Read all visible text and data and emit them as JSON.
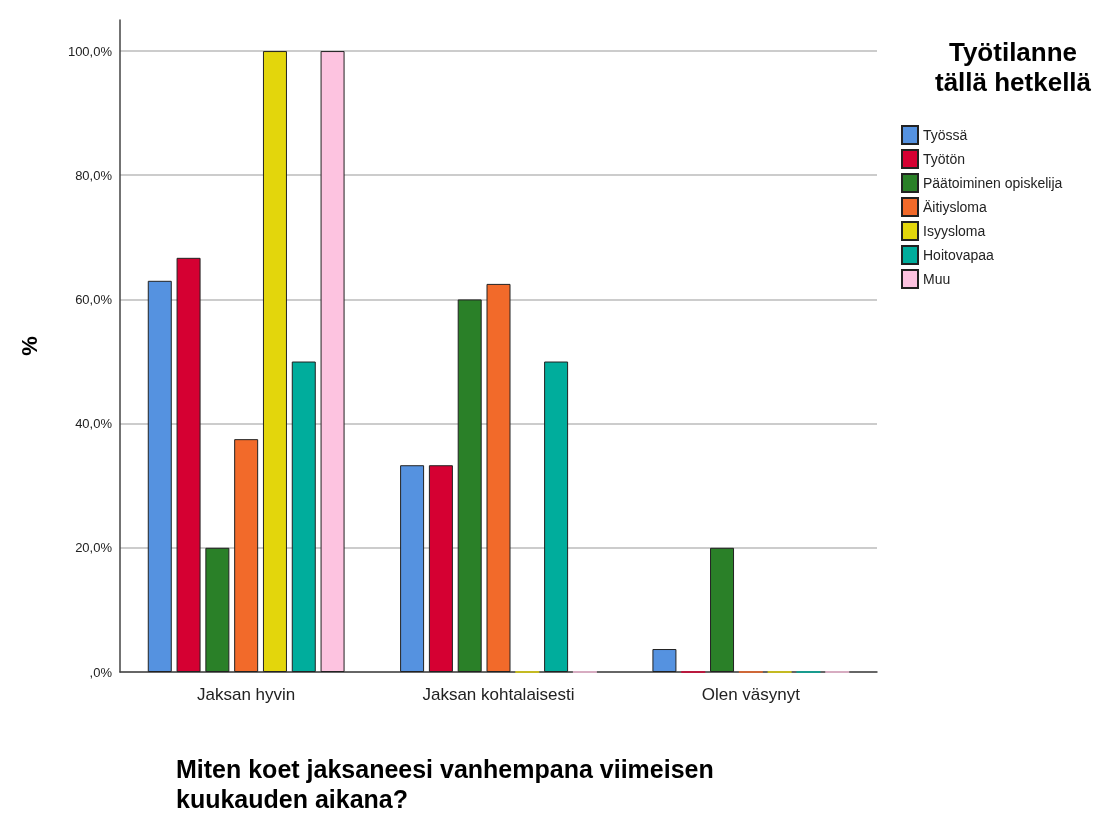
{
  "chart_data": {
    "type": "bar",
    "xlabel": "Miten koet jaksaneesi vanhempana viimeisen kuukauden aikana?",
    "ylabel": "%",
    "legend_title": "Työtilanne tällä hetkellä",
    "categories": [
      "Jaksan hyvin",
      "Jaksan kohtalaisesti",
      "Olen väsynyt"
    ],
    "series": [
      {
        "name": "Työssä",
        "color": "#5592e0",
        "values": [
          63.0,
          33.3,
          3.7
        ]
      },
      {
        "name": "Työtön",
        "color": "#d50032",
        "values": [
          66.7,
          33.3,
          0
        ]
      },
      {
        "name": "Päätoiminen opiskelija",
        "color": "#2a8028",
        "values": [
          20.0,
          60.0,
          20.0
        ]
      },
      {
        "name": "Äitiysloma",
        "color": "#f26a2a",
        "values": [
          37.5,
          62.5,
          0
        ]
      },
      {
        "name": "Isyysloma",
        "color": "#e3d60c",
        "values": [
          100,
          0,
          0
        ]
      },
      {
        "name": "Hoitovapaa",
        "color": "#00ad9c",
        "values": [
          50,
          50,
          0
        ]
      },
      {
        "name": "Muu",
        "color": "#fdc3e0",
        "values": [
          100,
          0,
          0
        ]
      }
    ],
    "ylim": [
      0,
      105
    ],
    "yticks": [
      {
        "value": 0,
        "label": ",0%"
      },
      {
        "value": 20,
        "label": "20,0%"
      },
      {
        "value": 40,
        "label": "40,0%"
      },
      {
        "value": 60,
        "label": "60,0%"
      },
      {
        "value": 80,
        "label": "80,0%"
      },
      {
        "value": 100,
        "label": "100,0%"
      }
    ],
    "grid": "y",
    "legend": "right"
  }
}
